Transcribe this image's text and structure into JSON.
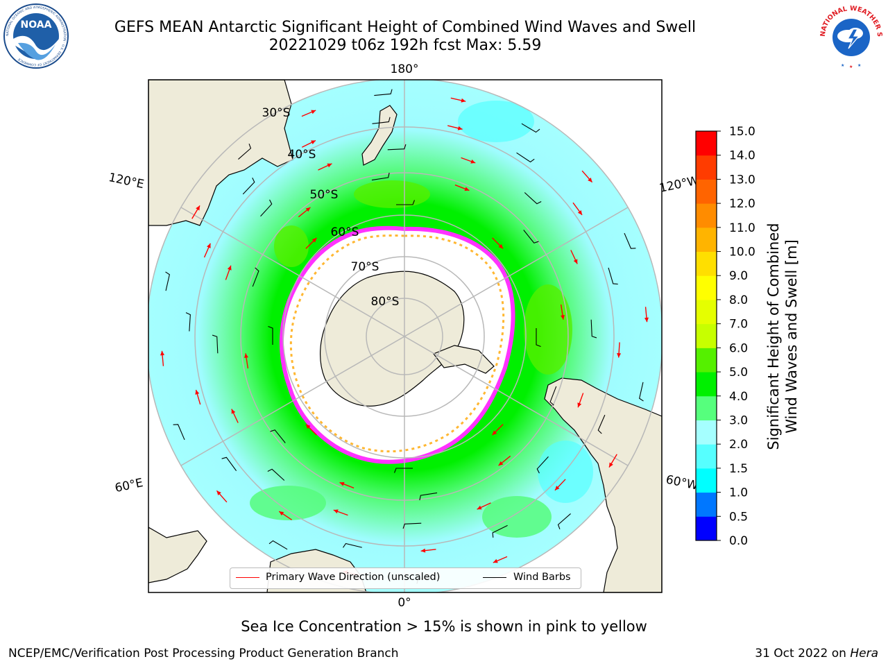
{
  "title": {
    "line1": "GEFS MEAN Antarctic Significant Height of Combined Wind Waves and Swell",
    "line2": "20221029 t06z 192h fcst   Max: 5.59"
  },
  "logos": {
    "left": {
      "name": "noaa-logo",
      "text": "NOAA",
      "ring_text": "NATIONAL OCEANIC AND ATMOSPHERIC ADMINISTRATION · U.S. DEPARTMENT OF COMMERCE"
    },
    "right": {
      "name": "nws-logo",
      "ring_text": "NATIONAL WEATHER SERVICE"
    }
  },
  "map": {
    "projection": "south-polar-stereographic",
    "longitude_labels": {
      "top": "180°",
      "bottom": "0°",
      "left_upper": "120°E",
      "left_lower": "60°E",
      "right_upper": "120°W",
      "right_lower": "60°W"
    },
    "latitude_labels": [
      "30°S",
      "40°S",
      "50°S",
      "60°S",
      "70°S",
      "80°S"
    ],
    "colors": {
      "land": "#eeebd9",
      "ocean_low": "#9ffcff",
      "ocean_mid": "#56fb7d",
      "ocean_high": "#00f000",
      "ice_edge": "#ff32ff",
      "ice_inner": "#ffb732",
      "wave_arrow": "#ff0000",
      "wind_barb": "#000000"
    },
    "legend": [
      {
        "label": "Primary Wave Direction (unscaled)",
        "color": "#ff0000"
      },
      {
        "label": "Wind Barbs",
        "color": "#000000"
      }
    ]
  },
  "colorbar": {
    "label": "Significant Height of Combined Wind Waves and Swell [m]",
    "label_line1": "Significant Height of Combined",
    "label_line2": "Wind Waves and Swell [m]",
    "ticks": [
      "0.0",
      "0.5",
      "1.0",
      "1.5",
      "2.0",
      "3.0",
      "4.0",
      "5.0",
      "6.0",
      "7.0",
      "8.0",
      "9.0",
      "10.0",
      "11.0",
      "12.0",
      "13.0",
      "14.0",
      "15.0"
    ],
    "bin_colors": [
      "#0000ff",
      "#0077ff",
      "#00ffff",
      "#56ffff",
      "#a5ffff",
      "#56ff7d",
      "#00f000",
      "#55f000",
      "#c7ff00",
      "#e5ff00",
      "#ffff00",
      "#ffdf00",
      "#ffb400",
      "#ff8c00",
      "#ff6400",
      "#ff3c00",
      "#ff0000"
    ]
  },
  "footer": {
    "sea_ice_note": "Sea Ice Concentration > 15% is shown in pink to yellow",
    "credit": "NCEP/EMC/Verification Post Processing Product Generation Branch",
    "date": "31 Oct 2022 on ",
    "machine": "Hera"
  }
}
